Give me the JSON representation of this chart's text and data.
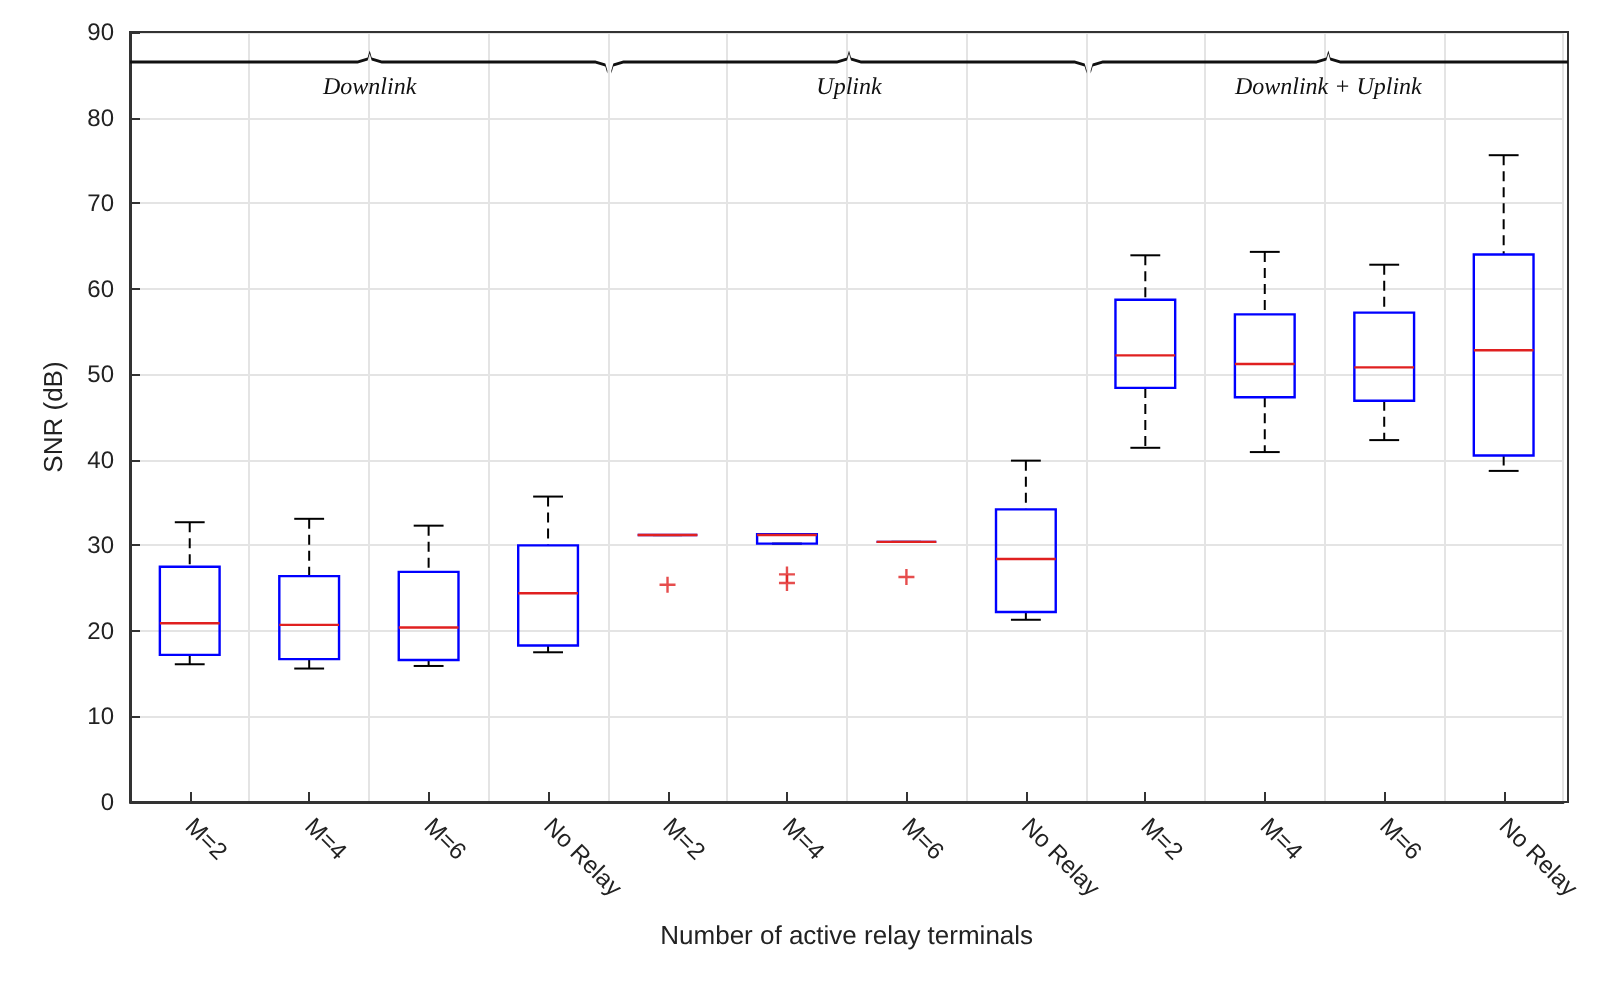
{
  "chart_data": {
    "type": "box",
    "xlabel": "Number of active relay terminals",
    "ylabel": "SNR (dB)",
    "categories": [
      "M=2",
      "M=4",
      "M=6",
      "No Relay",
      "M=2",
      "M=4",
      "M=6",
      "No Relay",
      "M=2",
      "M=4",
      "M=6",
      "No Relay"
    ],
    "annotations": [
      "Downlink",
      "Uplink",
      "Downlink + Uplink"
    ],
    "color": "#0000ff",
    "ylim": [
      0,
      90
    ],
    "yticks": [
      0,
      10,
      20,
      30,
      40,
      50,
      60,
      70,
      80,
      90
    ],
    "grid": true,
    "boxes": [
      {
        "low": 16.1,
        "q1": 17.2,
        "median": 20.9,
        "q3": 27.5,
        "high": 32.7
      },
      {
        "low": 15.6,
        "q1": 16.7,
        "median": 20.7,
        "q3": 26.4,
        "high": 33.1
      },
      {
        "low": 15.9,
        "q1": 16.6,
        "median": 20.4,
        "q3": 26.9,
        "high": 32.3
      },
      {
        "low": 17.5,
        "q1": 18.3,
        "median": 24.4,
        "q3": 30.0,
        "high": 35.7
      },
      {
        "low": 31.2,
        "q1": 31.2,
        "median": 31.2,
        "q3": 31.2,
        "high": 31.2,
        "outliers": [
          25.4
        ]
      },
      {
        "low": 30.2,
        "q1": 30.2,
        "median": 31.2,
        "q3": 31.3,
        "high": 31.3,
        "outliers": [
          26.6,
          25.6
        ]
      },
      {
        "low": 30.4,
        "q1": 30.4,
        "median": 30.4,
        "q3": 30.4,
        "high": 30.4,
        "outliers": [
          26.3
        ]
      },
      {
        "low": 21.3,
        "q1": 22.2,
        "median": 28.4,
        "q3": 34.2,
        "high": 39.9
      },
      {
        "low": 41.4,
        "q1": 48.4,
        "median": 52.2,
        "q3": 58.7,
        "high": 63.9
      },
      {
        "low": 40.9,
        "q1": 47.3,
        "median": 51.2,
        "q3": 57.0,
        "high": 64.3
      },
      {
        "low": 42.3,
        "q1": 46.9,
        "median": 50.8,
        "q3": 57.2,
        "high": 62.8
      },
      {
        "low": 38.7,
        "q1": 40.5,
        "median": 52.8,
        "q3": 64.0,
        "high": 75.6
      }
    ]
  }
}
